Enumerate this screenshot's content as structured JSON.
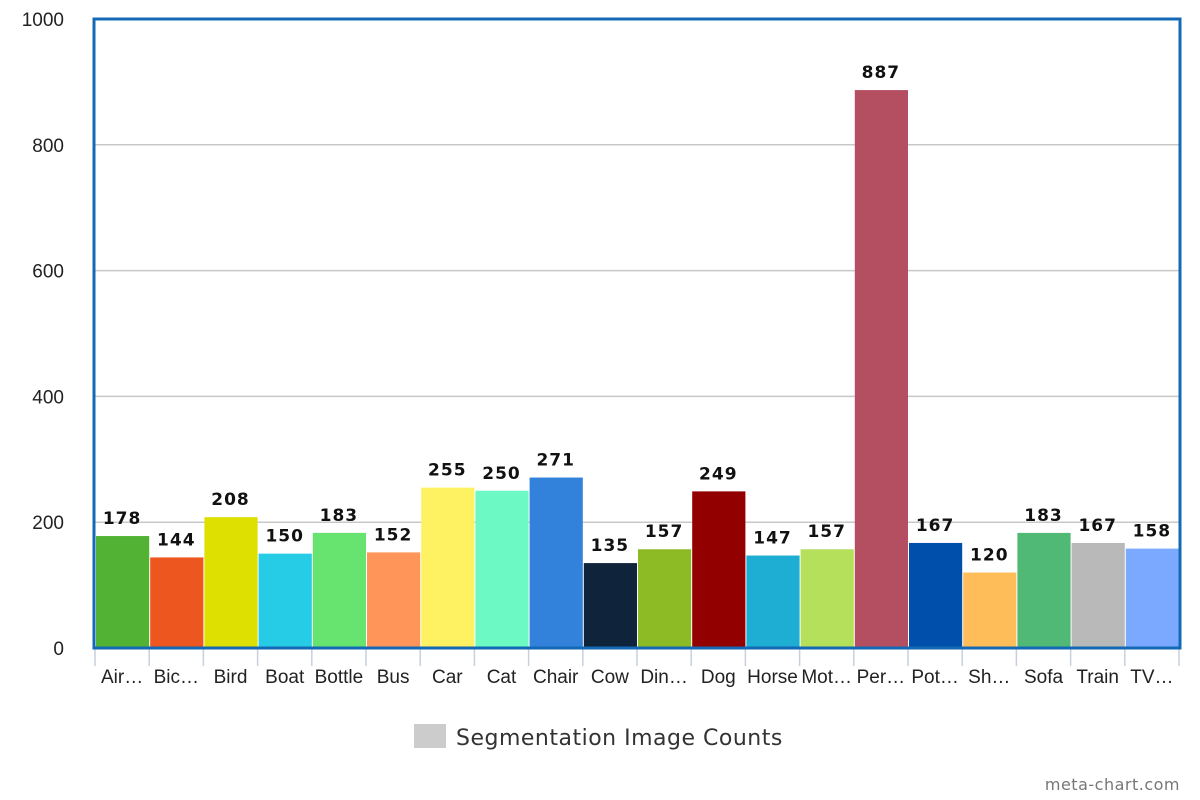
{
  "chart_data": {
    "type": "bar",
    "categories": [
      "Air…",
      "Bic…",
      "Bird",
      "Boat",
      "Bottle",
      "Bus",
      "Car",
      "Cat",
      "Chair",
      "Cow",
      "Din…",
      "Dog",
      "Horse",
      "Mot…",
      "Per…",
      "Pot…",
      "Sh…",
      "Sofa",
      "Train",
      "TV…"
    ],
    "series": [
      {
        "name": "Segmentation Image Counts",
        "values": [
          178,
          144,
          208,
          150,
          183,
          152,
          255,
          250,
          271,
          135,
          157,
          249,
          147,
          157,
          887,
          167,
          120,
          183,
          167,
          158
        ]
      }
    ],
    "bar_colors": [
      "#52b233",
      "#ee561f",
      "#dde000",
      "#26cbe6",
      "#66e46f",
      "#ff9558",
      "#fff262",
      "#6cf9c4",
      "#3282dc",
      "#0f243a",
      "#8cbb25",
      "#930000",
      "#1eadd3",
      "#b4e05c",
      "#b44f62",
      "#0050ab",
      "#ffbd59",
      "#4fb975",
      "#b9b9b9",
      "#7aa9ff"
    ],
    "yticks": [
      "0",
      "200",
      "400",
      "600",
      "800",
      "1000"
    ],
    "ylim": [
      0,
      1000
    ],
    "legend_color": "#cccccc",
    "grid": true,
    "legend": "bottom-center"
  },
  "watermark": "meta-chart.com"
}
